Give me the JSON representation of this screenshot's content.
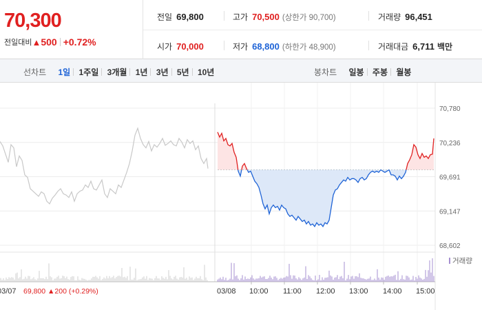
{
  "quote": {
    "price": "70,300",
    "change_label": "전일대비",
    "change_arrow": "▲",
    "change_amount": "500",
    "change_percent": "+0.72%"
  },
  "stats": {
    "prev_close": {
      "label": "전일",
      "value": "69,800"
    },
    "high": {
      "label": "고가",
      "value": "70,500",
      "sub": "(상한가 90,700)"
    },
    "volume": {
      "label": "거래량",
      "value": "96,451"
    },
    "open": {
      "label": "시가",
      "value": "70,000"
    },
    "low": {
      "label": "저가",
      "value": "68,800",
      "sub": "(하한가 48,900)"
    },
    "trade_value": {
      "label": "거래대금",
      "value": "6,711",
      "unit": "백만"
    }
  },
  "period_tabs": {
    "label": "선차트",
    "items": [
      "1일",
      "1주일",
      "3개월",
      "1년",
      "3년",
      "5년",
      "10년"
    ],
    "active_index": 0
  },
  "candle_tabs": {
    "label": "봉차트",
    "items": [
      "일봉",
      "주봉",
      "월봉"
    ]
  },
  "colors": {
    "up": "#e02020",
    "down": "#1e63d6",
    "prev_day_line": "#c8c8c8",
    "volume_today": "#a58fd0",
    "volume_prev": "#cfcfcf",
    "up_fill": "#fde4e4",
    "down_fill": "#dde8f8"
  },
  "chart_data": {
    "type": "line",
    "y_ticks": [
      "70,780",
      "70,236",
      "69,691",
      "69,147",
      "68,602"
    ],
    "ylim": [
      68602,
      70780
    ],
    "base_price": 69800,
    "x_labels": [
      "03/07",
      "03/08",
      "10:00",
      "11:00",
      "12:00",
      "13:00",
      "14:00",
      "15:00"
    ],
    "volume_legend": "거래량",
    "prev_day_footer": {
      "price": "69,800",
      "arrow": "▲",
      "change": "200",
      "percent": "(+0.29%)"
    },
    "series": [
      {
        "points": [
          [
            0,
            70250
          ],
          [
            4,
            70180
          ],
          [
            8,
            70050
          ],
          [
            12,
            69920
          ],
          [
            16,
            70200
          ],
          [
            20,
            70150
          ],
          [
            24,
            69850
          ],
          [
            28,
            70020
          ],
          [
            32,
            69950
          ],
          [
            36,
            69720
          ],
          [
            40,
            69680
          ],
          [
            44,
            69500
          ],
          [
            48,
            69460
          ],
          [
            52,
            69420
          ],
          [
            56,
            69380
          ],
          [
            60,
            69450
          ],
          [
            64,
            69420
          ],
          [
            68,
            69300
          ],
          [
            72,
            69260
          ],
          [
            76,
            69350
          ],
          [
            80,
            69400
          ],
          [
            84,
            69460
          ],
          [
            88,
            69500
          ],
          [
            92,
            69420
          ],
          [
            96,
            69400
          ],
          [
            100,
            69360
          ],
          [
            104,
            69450
          ],
          [
            108,
            69300
          ],
          [
            112,
            69420
          ],
          [
            116,
            69460
          ],
          [
            120,
            69480
          ],
          [
            124,
            69560
          ],
          [
            128,
            69520
          ],
          [
            132,
            69620
          ],
          [
            136,
            69500
          ],
          [
            140,
            69480
          ],
          [
            144,
            69560
          ],
          [
            148,
            69640
          ],
          [
            152,
            69420
          ],
          [
            156,
            69360
          ],
          [
            160,
            69500
          ],
          [
            164,
            69460
          ],
          [
            168,
            69420
          ],
          [
            172,
            69560
          ],
          [
            176,
            69520
          ],
          [
            180,
            69640
          ],
          [
            184,
            69760
          ],
          [
            188,
            69900
          ],
          [
            192,
            70100
          ],
          [
            196,
            70350
          ],
          [
            200,
            70460
          ],
          [
            204,
            70300
          ],
          [
            208,
            70200
          ],
          [
            212,
            70150
          ],
          [
            216,
            70250
          ],
          [
            220,
            70100
          ],
          [
            224,
            70200
          ],
          [
            228,
            70160
          ],
          [
            232,
            70220
          ],
          [
            236,
            70300
          ],
          [
            240,
            70190
          ],
          [
            244,
            70220
          ],
          [
            248,
            70260
          ],
          [
            252,
            70200
          ],
          [
            256,
            70180
          ],
          [
            260,
            70300
          ],
          [
            264,
            70240
          ],
          [
            268,
            70150
          ],
          [
            272,
            70280
          ],
          [
            276,
            70220
          ],
          [
            280,
            70260
          ],
          [
            284,
            70120
          ],
          [
            288,
            70180
          ],
          [
            292,
            69980
          ],
          [
            296,
            69900
          ],
          [
            300,
            69980
          ],
          [
            302,
            69820
          ]
        ]
      },
      {
        "points": [
          [
            316,
            70400
          ],
          [
            319,
            70320
          ],
          [
            322,
            70380
          ],
          [
            325,
            70260
          ],
          [
            328,
            70300
          ],
          [
            331,
            70200
          ],
          [
            334,
            70180
          ],
          [
            337,
            70220
          ],
          [
            340,
            70080
          ],
          [
            343,
            70000
          ],
          [
            346,
            69780
          ],
          [
            349,
            69700
          ],
          [
            352,
            69860
          ],
          [
            355,
            69900
          ],
          [
            358,
            69820
          ],
          [
            361,
            69760
          ],
          [
            364,
            69780
          ],
          [
            367,
            69700
          ],
          [
            370,
            69620
          ],
          [
            373,
            69580
          ],
          [
            376,
            69520
          ],
          [
            379,
            69400
          ],
          [
            382,
            69260
          ],
          [
            385,
            69180
          ],
          [
            388,
            69240
          ],
          [
            391,
            69100
          ],
          [
            394,
            69200
          ],
          [
            397,
            69240
          ],
          [
            400,
            69200
          ],
          [
            403,
            69220
          ],
          [
            406,
            69160
          ],
          [
            409,
            69240
          ],
          [
            412,
            69200
          ],
          [
            415,
            69180
          ],
          [
            418,
            69100
          ],
          [
            421,
            69060
          ],
          [
            424,
            69080
          ],
          [
            427,
            69040
          ],
          [
            430,
            69000
          ],
          [
            433,
            69060
          ],
          [
            436,
            69020
          ],
          [
            439,
            68980
          ],
          [
            442,
            69000
          ],
          [
            445,
            68940
          ],
          [
            448,
            68980
          ],
          [
            451,
            68920
          ],
          [
            454,
            68940
          ],
          [
            457,
            68900
          ],
          [
            460,
            68960
          ],
          [
            463,
            68920
          ],
          [
            466,
            68940
          ],
          [
            469,
            68900
          ],
          [
            472,
            68960
          ],
          [
            475,
            68940
          ],
          [
            478,
            69000
          ],
          [
            481,
            69200
          ],
          [
            484,
            69400
          ],
          [
            487,
            69480
          ],
          [
            490,
            69500
          ],
          [
            493,
            69560
          ],
          [
            496,
            69600
          ],
          [
            499,
            69640
          ],
          [
            502,
            69620
          ],
          [
            505,
            69680
          ],
          [
            508,
            69640
          ],
          [
            511,
            69660
          ],
          [
            514,
            69660
          ],
          [
            517,
            69640
          ],
          [
            520,
            69600
          ],
          [
            523,
            69660
          ],
          [
            526,
            69680
          ],
          [
            529,
            69640
          ],
          [
            532,
            69660
          ],
          [
            535,
            69720
          ],
          [
            538,
            69760
          ],
          [
            541,
            69780
          ],
          [
            544,
            69760
          ],
          [
            547,
            69780
          ],
          [
            550,
            69760
          ],
          [
            553,
            69800
          ],
          [
            556,
            69780
          ],
          [
            559,
            69760
          ],
          [
            562,
            69780
          ],
          [
            565,
            69800
          ],
          [
            568,
            69720
          ],
          [
            571,
            69720
          ],
          [
            574,
            69700
          ],
          [
            577,
            69640
          ],
          [
            580,
            69700
          ],
          [
            583,
            69660
          ],
          [
            586,
            69700
          ],
          [
            589,
            69760
          ],
          [
            592,
            69900
          ],
          [
            595,
            69960
          ],
          [
            598,
            70040
          ],
          [
            601,
            70200
          ],
          [
            604,
            70160
          ],
          [
            607,
            70040
          ],
          [
            610,
            69980
          ],
          [
            613,
            70060
          ],
          [
            616,
            70000
          ],
          [
            619,
            70020
          ],
          [
            622,
            69980
          ],
          [
            625,
            70040
          ],
          [
            628,
            70050
          ],
          [
            630,
            70300
          ]
        ]
      }
    ]
  }
}
